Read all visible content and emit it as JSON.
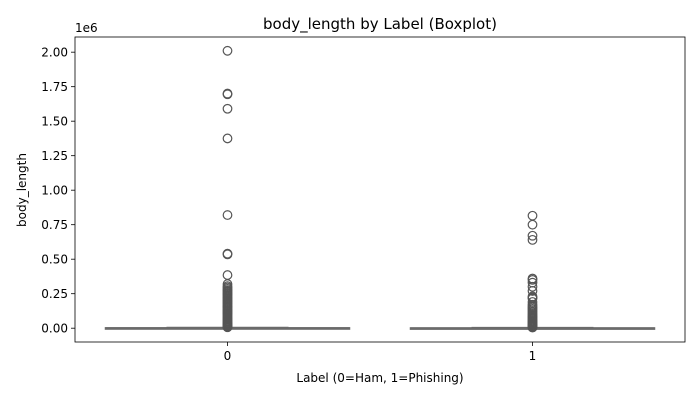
{
  "chart_data": {
    "type": "boxplot",
    "title": "body_length by Label (Boxplot)",
    "xlabel": "Label (0=Ham, 1=Phishing)",
    "ylabel": "body_length",
    "y_offset_label": "1e6",
    "y_scale_factor": 1000000,
    "ylim": [
      -100000,
      2110000
    ],
    "y_ticks": [
      0,
      250000,
      500000,
      750000,
      1000000,
      1250000,
      1500000,
      1750000,
      2000000
    ],
    "y_tick_labels": [
      "0.00",
      "0.25",
      "0.50",
      "0.75",
      "1.00",
      "1.25",
      "1.50",
      "1.75",
      "2.00"
    ],
    "categories": [
      "0",
      "1"
    ],
    "grid": false,
    "colors": {
      "box_face": "#ffffff",
      "line": "#6b6b6b",
      "flier_edge": "#555555",
      "axes": "#000000"
    },
    "boxes": [
      {
        "category": "0",
        "whisker_low": 0,
        "q1": 400,
        "median": 1000,
        "q3": 2500,
        "whisker_high": 5500,
        "fliers": [
          2010000,
          1700000,
          1695000,
          1590000,
          1375000,
          820000,
          540000,
          535000,
          385000,
          320000,
          305000,
          295000,
          285000,
          275000,
          268000,
          260000,
          252000,
          245000,
          238000,
          230000,
          222000,
          215000,
          208000,
          200000,
          192000,
          185000,
          178000,
          170000,
          162000,
          155000,
          148000,
          140000,
          133000,
          126000,
          119000,
          112000,
          105000,
          98000,
          91000,
          84000,
          77000,
          70000,
          63000,
          56000,
          50000,
          44000,
          38000,
          33000,
          28000,
          23000,
          19000,
          15000,
          12000,
          9000,
          7000
        ]
      },
      {
        "category": "1",
        "whisker_low": 0,
        "q1": 300,
        "median": 700,
        "q3": 1800,
        "whisker_high": 4000,
        "fliers": [
          815000,
          750000,
          670000,
          640000,
          360000,
          350000,
          330000,
          300000,
          270000,
          230000,
          222000,
          215000,
          190000,
          170000,
          160000,
          150000,
          140000,
          130000,
          120000,
          110000,
          100000,
          92000,
          84000,
          76000,
          68000,
          60000,
          53000,
          46000,
          40000,
          34000,
          28000,
          23000,
          18000,
          14000,
          10000,
          7000,
          5000
        ]
      }
    ]
  }
}
